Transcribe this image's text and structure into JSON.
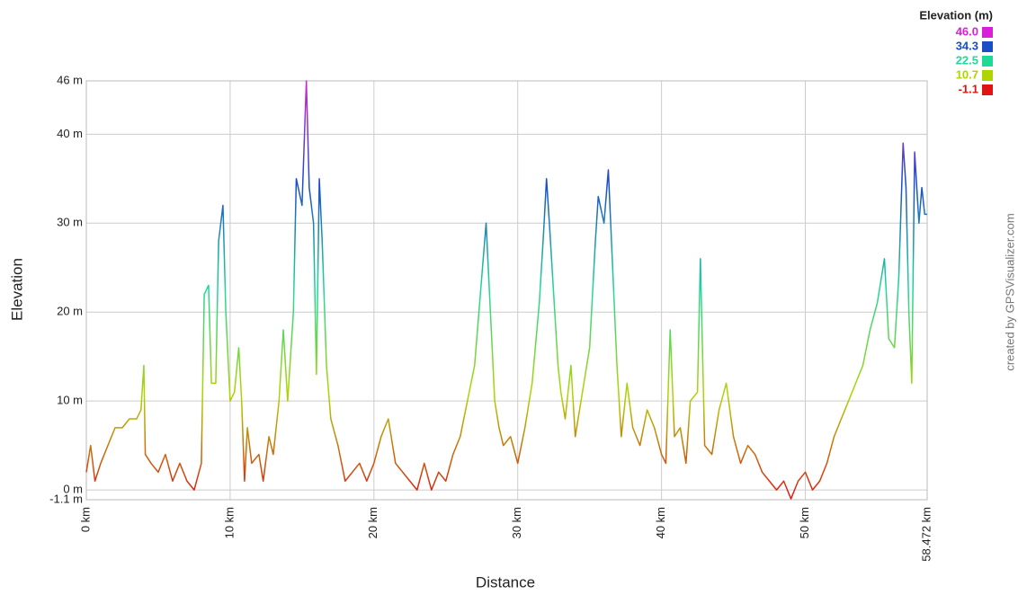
{
  "chart_data": {
    "type": "line",
    "x_label": "Distance",
    "y_label": "Elevation",
    "watermark": "created by GPSVisualizer.com",
    "legend_title": "Elevation (m)",
    "color_scale": [
      {
        "value": 46.0,
        "label": "46.0",
        "color": "#d820d8"
      },
      {
        "value": 34.3,
        "label": "34.3",
        "color": "#1a4ec8"
      },
      {
        "value": 22.5,
        "label": "22.5",
        "color": "#20d898"
      },
      {
        "value": 10.7,
        "label": "10.7",
        "color": "#b0d400"
      },
      {
        "value": -1.1,
        "label": "-1.1",
        "color": "#e01414"
      }
    ],
    "xlim": [
      0,
      58.472
    ],
    "ylim": [
      -1.1,
      46
    ],
    "xticks": [
      {
        "value": 0,
        "label": "0 km"
      },
      {
        "value": 10,
        "label": "10 km"
      },
      {
        "value": 20,
        "label": "20 km"
      },
      {
        "value": 30,
        "label": "30 km"
      },
      {
        "value": 40,
        "label": "40 km"
      },
      {
        "value": 50,
        "label": "50 km"
      },
      {
        "value": 58.472,
        "label": "58.472 km"
      }
    ],
    "yticks": [
      {
        "value": -1.1,
        "label": "-1.1 m"
      },
      {
        "value": 0,
        "label": "0 m"
      },
      {
        "value": 10,
        "label": "10 m"
      },
      {
        "value": 20,
        "label": "20 m"
      },
      {
        "value": 30,
        "label": "30 m"
      },
      {
        "value": 40,
        "label": "40 m"
      },
      {
        "value": 46,
        "label": "46 m"
      }
    ],
    "grid": true,
    "x": [
      0,
      0.3,
      0.6,
      1,
      1.5,
      2,
      2.5,
      3,
      3.5,
      3.8,
      4.0,
      4.1,
      4.5,
      5,
      5.5,
      6,
      6.5,
      7,
      7.5,
      8,
      8.2,
      8.5,
      8.7,
      9,
      9.2,
      9.5,
      9.7,
      10,
      10.3,
      10.6,
      10.8,
      11,
      11.2,
      11.5,
      12,
      12.3,
      12.7,
      13,
      13.4,
      13.7,
      14,
      14.4,
      14.6,
      15,
      15.3,
      15.5,
      15.8,
      16,
      16.2,
      16.4,
      16.7,
      17,
      17.5,
      18,
      18.5,
      19,
      19.5,
      20,
      20.5,
      21,
      21.5,
      22,
      22.5,
      23,
      23.5,
      24,
      24.5,
      25,
      25.5,
      26,
      26.5,
      27,
      27.5,
      27.8,
      28.1,
      28.4,
      28.7,
      29,
      29.5,
      30,
      30.5,
      31,
      31.5,
      31.8,
      32,
      32.2,
      32.5,
      32.8,
      33,
      33.3,
      33.7,
      34,
      34.5,
      35,
      35.4,
      35.6,
      36,
      36.3,
      36.6,
      36.9,
      37.2,
      37.6,
      38,
      38.5,
      39,
      39.5,
      40,
      40.3,
      40.6,
      40.9,
      41.3,
      41.7,
      42,
      42.5,
      42.7,
      43,
      43.5,
      44,
      44.5,
      45,
      45.5,
      46,
      46.5,
      47,
      47.5,
      48,
      48.5,
      49,
      49.5,
      50,
      50.5,
      51,
      51.5,
      52,
      52.5,
      53,
      53.5,
      54,
      54.5,
      55,
      55.5,
      55.8,
      56.2,
      56.5,
      56.8,
      57,
      57.2,
      57.4,
      57.6,
      57.9,
      58.1,
      58.3,
      58.472
    ],
    "values": [
      2,
      5,
      1,
      3,
      5,
      7,
      7,
      8,
      8,
      9,
      14,
      4,
      3,
      2,
      4,
      1,
      3,
      1,
      0,
      3,
      22,
      23,
      12,
      12,
      28,
      32,
      20,
      10,
      11,
      16,
      10,
      1,
      7,
      3,
      4,
      1,
      6,
      4,
      10,
      18,
      10,
      20,
      35,
      32,
      46,
      34,
      30,
      13,
      35,
      28,
      14,
      8,
      5,
      1,
      2,
      3,
      1,
      3,
      6,
      8,
      3,
      2,
      1,
      0,
      3,
      0,
      2,
      1,
      4,
      6,
      10,
      14,
      24,
      30,
      20,
      10,
      7,
      5,
      6,
      3,
      7,
      12,
      21,
      29,
      35,
      30,
      22,
      14,
      11,
      8,
      14,
      6,
      11,
      16,
      28,
      33,
      30,
      36,
      25,
      14,
      6,
      12,
      7,
      5,
      9,
      7,
      4,
      3,
      18,
      6,
      7,
      3,
      10,
      11,
      26,
      5,
      4,
      9,
      12,
      6,
      3,
      5,
      4,
      2,
      1,
      0,
      1,
      -1,
      1,
      2,
      0,
      1,
      3,
      6,
      8,
      10,
      12,
      14,
      18,
      21,
      26,
      17,
      16,
      24,
      39,
      34,
      20,
      12,
      38,
      30,
      34,
      31,
      31
    ]
  }
}
